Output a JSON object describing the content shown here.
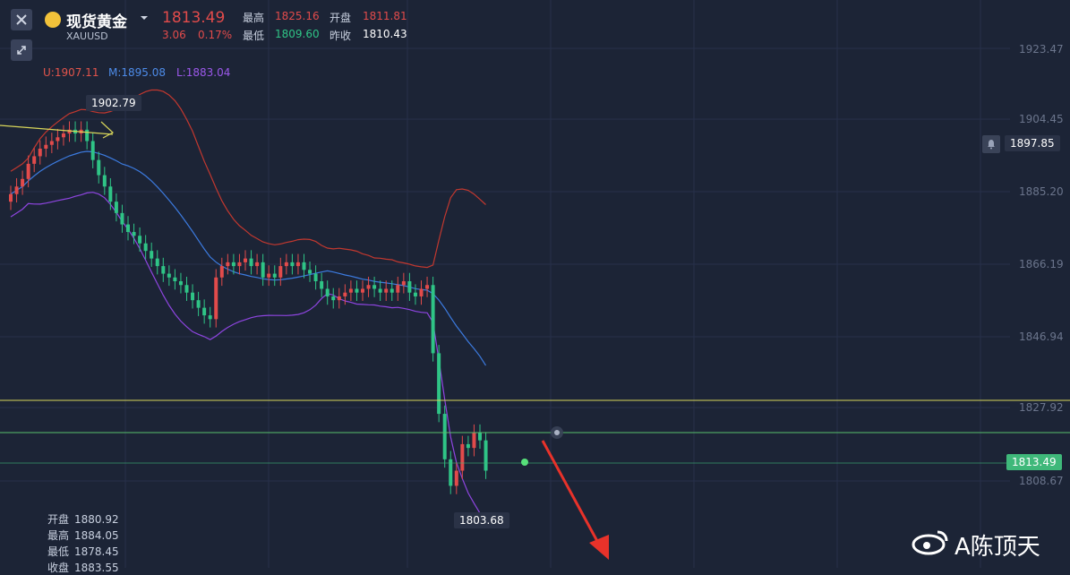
{
  "header": {
    "name": "现货黄金",
    "symbol": "XAUUSD",
    "price": "1813.49",
    "change": "3.06",
    "change_pct": "0.17%",
    "high_label": "最高",
    "high": "1825.16",
    "open_label": "开盘",
    "open": "1811.81",
    "low_label": "最低",
    "low": "1809.60",
    "prev_label": "昨收",
    "prev": "1810.43"
  },
  "bands_legend": {
    "u": "U:1907.11",
    "m": "M:1895.08",
    "l": "L:1883.04"
  },
  "axis_labels": [
    "1923.47",
    "1904.45",
    "1885.20",
    "1866.19",
    "1846.94",
    "1827.92",
    "1808.67"
  ],
  "alert_price": "1897.85",
  "current_price_tag": "1813.49",
  "annotations": {
    "high_point": "1902.79",
    "low_point": "1803.68"
  },
  "bottom_ohlc": {
    "open_label": "开盘",
    "open": "1880.92",
    "high_label": "最高",
    "high": "1884.05",
    "low_label": "最低",
    "low": "1878.45",
    "close_label": "收盘",
    "close": "1883.55"
  },
  "watermark": "A陈顶天",
  "colors": {
    "up": "#e24b4b",
    "down": "#2fc486",
    "upper_band": "#c2382f",
    "mid_band": "#3c7be0",
    "lower_band": "#8e45e0",
    "h_line_yellow": "#d8d65a",
    "h_line_green": "#57c06c",
    "arrow": "#e8322a"
  },
  "chart_data": {
    "type": "candlestick",
    "ylim": [
      1800,
      1930
    ],
    "closes": [
      1885,
      1887,
      1889,
      1893,
      1895,
      1897,
      1898,
      1899,
      1900,
      1901,
      1902,
      1901,
      1902,
      1899,
      1894,
      1890,
      1887,
      1883,
      1880,
      1877,
      1875,
      1874,
      1872,
      1870,
      1868,
      1866,
      1864,
      1863,
      1862,
      1861,
      1859,
      1857,
      1855,
      1853,
      1852,
      1863,
      1866,
      1867,
      1866,
      1867,
      1868,
      1866,
      1867,
      1863,
      1864,
      1863,
      1866,
      1867,
      1866,
      1867,
      1865,
      1864,
      1862,
      1860,
      1858,
      1857,
      1858,
      1859,
      1860,
      1859,
      1860,
      1861,
      1860,
      1859,
      1860,
      1859,
      1861,
      1862,
      1859,
      1858,
      1860,
      1861,
      1843,
      1827,
      1815,
      1808,
      1812,
      1819,
      1818,
      1822,
      1820,
      1812
    ]
  }
}
